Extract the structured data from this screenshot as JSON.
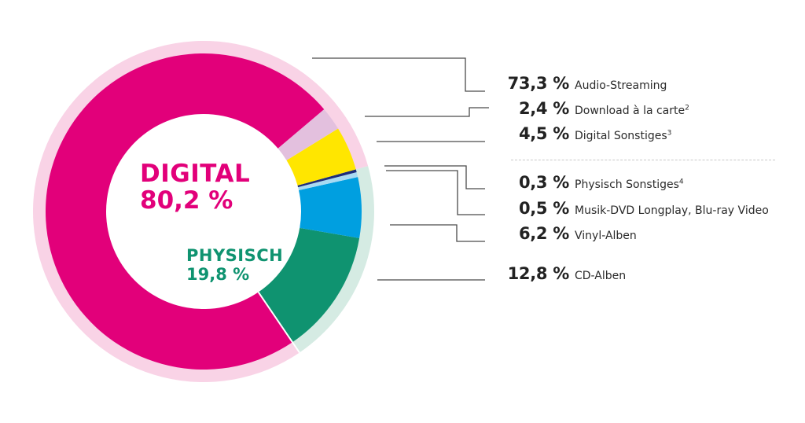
{
  "chart_data": {
    "type": "pie",
    "variant": "donut",
    "title": "",
    "groups": [
      {
        "name": "DIGITAL",
        "value": 80.2,
        "label_pct": "80,2 %",
        "color": "#e2007a",
        "ring_color": "#f9d3e6"
      },
      {
        "name": "PHYSISCH",
        "value": 19.8,
        "label_pct": "19,8 %",
        "color": "#0f9370",
        "ring_color": "#d5ebe3"
      }
    ],
    "categories": [
      "Audio-Streaming",
      "Download à la carte",
      "Digital Sonstiges",
      "Physisch Sonstiges",
      "Musik-DVD Longplay, Blu-ray Video",
      "Vinyl-Alben",
      "CD-Alben"
    ],
    "values": [
      73.3,
      2.4,
      4.5,
      0.3,
      0.5,
      6.2,
      12.8
    ],
    "slices": [
      {
        "label": "Audio-Streaming",
        "footnote": "",
        "value": 73.3,
        "display": "73,3 %",
        "group": "DIGITAL",
        "color": "#e2007a"
      },
      {
        "label": "Download à la carte",
        "footnote": "2",
        "value": 2.4,
        "display": "2,4 %",
        "group": "DIGITAL",
        "color": "#e3c0de"
      },
      {
        "label": "Digital Sonstiges",
        "footnote": "3",
        "value": 4.5,
        "display": "4,5 %",
        "group": "DIGITAL",
        "color": "#ffe600"
      },
      {
        "label": "Physisch Sonstiges",
        "footnote": "4",
        "value": 0.3,
        "display": "0,3 %",
        "group": "PHYSISCH",
        "color": "#1d2d7a"
      },
      {
        "label": "Musik-DVD Longplay, Blu-ray Video",
        "footnote": "",
        "value": 0.5,
        "display": "0,5 %",
        "group": "PHYSISCH",
        "color": "#a9daf2"
      },
      {
        "label": "Vinyl-Alben",
        "footnote": "",
        "value": 6.2,
        "display": "6,2 %",
        "group": "PHYSISCH",
        "color": "#009fe0"
      },
      {
        "label": "CD-Alben",
        "footnote": "",
        "value": 12.8,
        "display": "12,8 %",
        "group": "PHYSISCH",
        "color": "#0f9370"
      }
    ],
    "legend_position": "right",
    "total": 100
  },
  "center_labels": {
    "digital_title": "DIGITAL",
    "digital_pct": "80,2 %",
    "physisch_title": "PHYSISCH",
    "physisch_pct": "19,8 %"
  },
  "legend": [
    {
      "value": "73,3 %",
      "label": "Audio-Streaming",
      "sup": ""
    },
    {
      "value": "2,4 %",
      "label": "Download à la carte",
      "sup": "2"
    },
    {
      "value": "4,5 %",
      "label": "Digital Sonstiges",
      "sup": "3"
    },
    {
      "value": "0,3 %",
      "label": "Physisch Sonstiges",
      "sup": "4"
    },
    {
      "value": "0,5 %",
      "label": "Musik-DVD Longplay, Blu-ray Video",
      "sup": ""
    },
    {
      "value": "6,2 %",
      "label": "Vinyl-Alben",
      "sup": ""
    },
    {
      "value": "12,8 %",
      "label": "CD-Alben",
      "sup": ""
    }
  ]
}
